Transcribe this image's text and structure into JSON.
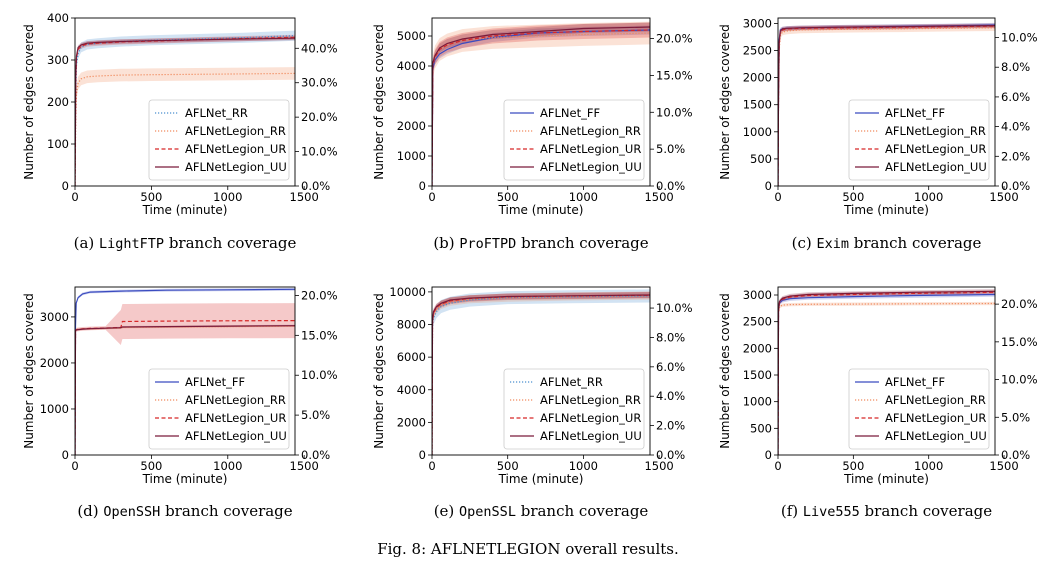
{
  "figure": {
    "caption": "Fig. 8: AFLNETLEGION overall results."
  },
  "colors": {
    "AFLNet_RR": "#4a8fcf",
    "AFLNetLegion_RR": "#f08a5d",
    "AFLNetLegion_UR": "#d62728",
    "AFLNetLegion_UU": "#7b1b3a",
    "AFLNet_FF": "#3b4cc0"
  },
  "chart_data": [
    {
      "type": "line",
      "subcaption": {
        "prefix": "(a) ",
        "program": "LightFTP",
        "suffix": " branch coverage"
      },
      "xlabel": "Time (minute)",
      "ylabel": "Number of edges covered",
      "xlim": [
        0,
        1440
      ],
      "ylim": [
        0,
        400
      ],
      "xticks": [
        0,
        500,
        1000,
        1500
      ],
      "yticks": [
        0,
        100,
        200,
        300,
        400
      ],
      "y2ticks": [
        "0.0%",
        "10.0%",
        "20.0%",
        "30.0%",
        "40.0%"
      ],
      "y2_per_unit": 0.00122,
      "legend": "lower-right",
      "series": [
        {
          "name": "AFLNet_RR",
          "style": "dotted",
          "x": [
            0,
            5,
            10,
            20,
            40,
            80,
            150,
            300,
            500,
            800,
            1100,
            1440
          ],
          "y": [
            0,
            220,
            290,
            315,
            330,
            337,
            340,
            344,
            347,
            350,
            353,
            358
          ],
          "band": 12
        },
        {
          "name": "AFLNetLegion_RR",
          "style": "dotted",
          "x": [
            0,
            5,
            10,
            20,
            40,
            80,
            150,
            300,
            500,
            800,
            1100,
            1440
          ],
          "y": [
            0,
            170,
            220,
            245,
            255,
            260,
            262,
            264,
            265,
            266,
            267,
            268
          ],
          "band": 15
        },
        {
          "name": "AFLNetLegion_UR",
          "style": "dashed",
          "x": [
            0,
            5,
            10,
            20,
            40,
            80,
            150,
            300,
            500,
            800,
            1100,
            1440
          ],
          "y": [
            0,
            250,
            305,
            325,
            333,
            338,
            340,
            343,
            345,
            348,
            351,
            354
          ],
          "band": 6
        },
        {
          "name": "AFLNetLegion_UU",
          "style": "solid",
          "x": [
            0,
            5,
            10,
            20,
            40,
            80,
            150,
            300,
            500,
            800,
            1100,
            1440
          ],
          "y": [
            0,
            260,
            310,
            330,
            336,
            340,
            342,
            344,
            346,
            348,
            350,
            352
          ],
          "band": 5
        }
      ]
    },
    {
      "type": "line",
      "subcaption": {
        "prefix": "(b) ",
        "program": "ProFTPD",
        "suffix": " branch coverage"
      },
      "xlabel": "Time (minute)",
      "ylabel": "Number of edges covered",
      "xlim": [
        0,
        1440
      ],
      "ylim": [
        0,
        5600
      ],
      "xticks": [
        0,
        500,
        1000,
        1500
      ],
      "yticks": [
        0,
        1000,
        2000,
        3000,
        4000,
        5000
      ],
      "y2ticks": [
        "0.0%",
        "5.0%",
        "10.0%",
        "15.0%",
        "20.0%"
      ],
      "y2_per_unit": 4.07e-05,
      "legend": "lower-right",
      "series": [
        {
          "name": "AFLNet_FF",
          "style": "solid",
          "x": [
            0,
            5,
            20,
            50,
            100,
            200,
            400,
            700,
            1000,
            1440
          ],
          "y": [
            0,
            3900,
            4200,
            4400,
            4550,
            4750,
            4950,
            5100,
            5150,
            5200
          ],
          "band": 150
        },
        {
          "name": "AFLNetLegion_RR",
          "style": "dotted",
          "x": [
            0,
            5,
            20,
            50,
            100,
            200,
            400,
            700,
            1000,
            1440
          ],
          "y": [
            0,
            4000,
            4300,
            4550,
            4700,
            4850,
            4950,
            5000,
            5050,
            5100
          ],
          "band": 380
        },
        {
          "name": "AFLNetLegion_UR",
          "style": "dashed",
          "x": [
            0,
            5,
            20,
            50,
            100,
            200,
            400,
            700,
            1000,
            1440
          ],
          "y": [
            0,
            4000,
            4300,
            4550,
            4700,
            4850,
            5000,
            5100,
            5150,
            5200
          ],
          "band": 250
        },
        {
          "name": "AFLNetLegion_UU",
          "style": "solid",
          "x": [
            0,
            5,
            20,
            50,
            100,
            200,
            400,
            700,
            1000,
            1440
          ],
          "y": [
            0,
            4100,
            4350,
            4600,
            4750,
            4900,
            5050,
            5150,
            5250,
            5300
          ],
          "band": 150
        }
      ]
    },
    {
      "type": "line",
      "subcaption": {
        "prefix": "(c) ",
        "program": "Exim",
        "suffix": " branch coverage"
      },
      "xlabel": "Time (minute)",
      "ylabel": "Number of edges covered",
      "xlim": [
        0,
        1440
      ],
      "ylim": [
        0,
        3100
      ],
      "xticks": [
        0,
        500,
        1000,
        1500
      ],
      "yticks": [
        0,
        500,
        1000,
        1500,
        2000,
        2500,
        3000
      ],
      "y2ticks": [
        "0.0%",
        "2.0%",
        "4.0%",
        "6.0%",
        "8.0%",
        "10.0%"
      ],
      "y2_per_unit": 3.65e-05,
      "legend": "lower-right",
      "series": [
        {
          "name": "AFLNet_FF",
          "style": "solid",
          "x": [
            0,
            3,
            8,
            15,
            30,
            60,
            150,
            400,
            800,
            1100,
            1440
          ],
          "y": [
            0,
            1600,
            2700,
            2880,
            2900,
            2910,
            2920,
            2930,
            2945,
            2955,
            2970
          ],
          "band": 40
        },
        {
          "name": "AFLNetLegion_RR",
          "style": "dotted",
          "x": [
            0,
            3,
            8,
            15,
            30,
            60,
            150,
            400,
            800,
            1100,
            1440
          ],
          "y": [
            0,
            1500,
            2500,
            2780,
            2840,
            2860,
            2880,
            2890,
            2900,
            2910,
            2920
          ],
          "band": 60
        },
        {
          "name": "AFLNetLegion_UR",
          "style": "dashed",
          "x": [
            0,
            3,
            8,
            15,
            30,
            60,
            150,
            400,
            800,
            1100,
            1440
          ],
          "y": [
            0,
            1700,
            2600,
            2830,
            2880,
            2900,
            2910,
            2920,
            2930,
            2940,
            2950
          ],
          "band": 40
        },
        {
          "name": "AFLNetLegion_UU",
          "style": "solid",
          "x": [
            0,
            3,
            8,
            15,
            30,
            60,
            150,
            400,
            800,
            1100,
            1440
          ],
          "y": [
            0,
            1650,
            2650,
            2860,
            2900,
            2910,
            2920,
            2930,
            2940,
            2950,
            2960
          ],
          "band": 40
        }
      ]
    },
    {
      "type": "line",
      "subcaption": {
        "prefix": "(d) ",
        "program": "OpenSSH",
        "suffix": " branch coverage"
      },
      "xlabel": "Time (minute)",
      "ylabel": "Number of edges covered",
      "xlim": [
        0,
        1440
      ],
      "ylim": [
        0,
        3650
      ],
      "xticks": [
        0,
        500,
        1000,
        1500
      ],
      "yticks": [
        0,
        1000,
        2000,
        3000
      ],
      "y2ticks": [
        "0.0%",
        "5.0%",
        "10.0%",
        "15.0%",
        "20.0%"
      ],
      "y2_per_unit": 5.77e-05,
      "legend": "lower-right",
      "series": [
        {
          "name": "AFLNet_FF",
          "style": "solid",
          "x": [
            0,
            3,
            8,
            20,
            50,
            100,
            300,
            600,
            1000,
            1440
          ],
          "y": [
            0,
            2800,
            3300,
            3420,
            3500,
            3540,
            3560,
            3580,
            3590,
            3600
          ],
          "band": 30
        },
        {
          "name": "AFLNetLegion_RR",
          "style": "dotted",
          "x": [
            0,
            3,
            8,
            20,
            50,
            100,
            200,
            300,
            310,
            600,
            1000,
            1440
          ],
          "y": [
            0,
            2700,
            2720,
            2730,
            2740,
            2740,
            2750,
            2760,
            2770,
            2780,
            2790,
            2800
          ],
          "band": 20
        },
        {
          "name": "AFLNetLegion_UR",
          "style": "dashed",
          "x": [
            0,
            3,
            8,
            20,
            50,
            100,
            200,
            300,
            310,
            600,
            1000,
            1440
          ],
          "y": [
            0,
            2710,
            2720,
            2730,
            2740,
            2750,
            2760,
            2770,
            2900,
            2910,
            2915,
            2920
          ],
          "band": 40,
          "band_late": 380,
          "band_late_from": 300
        },
        {
          "name": "AFLNetLegion_UU",
          "style": "solid",
          "x": [
            0,
            3,
            8,
            20,
            50,
            100,
            200,
            300,
            310,
            600,
            1000,
            1440
          ],
          "y": [
            0,
            2700,
            2715,
            2725,
            2735,
            2745,
            2755,
            2765,
            2780,
            2790,
            2800,
            2810
          ],
          "band": 20
        }
      ]
    },
    {
      "type": "line",
      "subcaption": {
        "prefix": "(e) ",
        "program": "OpenSSL",
        "suffix": " branch coverage"
      },
      "xlabel": "Time (minute)",
      "ylabel": "Number of edges covered",
      "xlim": [
        0,
        1440
      ],
      "ylim": [
        0,
        10300
      ],
      "xticks": [
        0,
        500,
        1000,
        1500
      ],
      "yticks": [
        0,
        2000,
        4000,
        6000,
        8000,
        10000
      ],
      "y2ticks": [
        "0.0%",
        "2.0%",
        "4.0%",
        "6.0%",
        "8.0%",
        "10.0%"
      ],
      "y2_per_unit": 1.11e-05,
      "legend": "lower-right",
      "series": [
        {
          "name": "AFLNet_RR",
          "style": "dotted",
          "x": [
            0,
            3,
            10,
            30,
            60,
            120,
            250,
            500,
            900,
            1440
          ],
          "y": [
            0,
            7800,
            8400,
            8800,
            9100,
            9300,
            9500,
            9650,
            9700,
            9750
          ],
          "band": 400
        },
        {
          "name": "AFLNetLegion_RR",
          "style": "dotted",
          "x": [
            0,
            3,
            10,
            30,
            60,
            120,
            250,
            500,
            900,
            1440
          ],
          "y": [
            0,
            8000,
            8600,
            8950,
            9200,
            9400,
            9550,
            9650,
            9720,
            9780
          ],
          "band": 250
        },
        {
          "name": "AFLNetLegion_UR",
          "style": "dashed",
          "x": [
            0,
            3,
            10,
            30,
            60,
            120,
            250,
            500,
            900,
            1440
          ],
          "y": [
            0,
            8100,
            8700,
            9050,
            9250,
            9450,
            9600,
            9700,
            9750,
            9800
          ],
          "band": 200
        },
        {
          "name": "AFLNetLegion_UU",
          "style": "solid",
          "x": [
            0,
            3,
            10,
            30,
            60,
            120,
            250,
            500,
            900,
            1440
          ],
          "y": [
            0,
            8200,
            8800,
            9100,
            9300,
            9500,
            9620,
            9720,
            9760,
            9810
          ],
          "band": 180
        }
      ]
    },
    {
      "type": "line",
      "subcaption": {
        "prefix": "(f) ",
        "program": "Live555",
        "suffix": " branch coverage"
      },
      "xlabel": "Time (minute)",
      "ylabel": "Number of edges covered",
      "xlim": [
        0,
        1440
      ],
      "ylim": [
        0,
        3150
      ],
      "xticks": [
        0,
        500,
        1000,
        1500
      ],
      "yticks": [
        0,
        500,
        1000,
        1500,
        2000,
        2500,
        3000
      ],
      "y2ticks": [
        "0.0%",
        "5.0%",
        "10.0%",
        "15.0%",
        "20.0%"
      ],
      "y2_per_unit": 7.07e-05,
      "legend": "lower-right",
      "series": [
        {
          "name": "AFLNet_FF",
          "style": "solid",
          "x": [
            0,
            3,
            10,
            30,
            80,
            200,
            500,
            900,
            1440
          ],
          "y": [
            0,
            2700,
            2850,
            2900,
            2930,
            2950,
            2970,
            2990,
            3010
          ],
          "band": 40
        },
        {
          "name": "AFLNetLegion_RR",
          "style": "dotted",
          "x": [
            0,
            3,
            10,
            30,
            80,
            200,
            500,
            900,
            1440
          ],
          "y": [
            0,
            2650,
            2780,
            2810,
            2820,
            2825,
            2830,
            2835,
            2840
          ],
          "band": 30
        },
        {
          "name": "AFLNetLegion_UR",
          "style": "dashed",
          "x": [
            0,
            3,
            10,
            30,
            80,
            200,
            500,
            900,
            1440
          ],
          "y": [
            0,
            2700,
            2860,
            2920,
            2960,
            2990,
            3010,
            3030,
            3050
          ],
          "band": 40
        },
        {
          "name": "AFLNetLegion_UU",
          "style": "solid",
          "x": [
            0,
            3,
            10,
            30,
            80,
            200,
            500,
            900,
            1440
          ],
          "y": [
            0,
            2720,
            2880,
            2940,
            2980,
            3010,
            3030,
            3050,
            3070
          ],
          "band": 40
        }
      ]
    }
  ]
}
